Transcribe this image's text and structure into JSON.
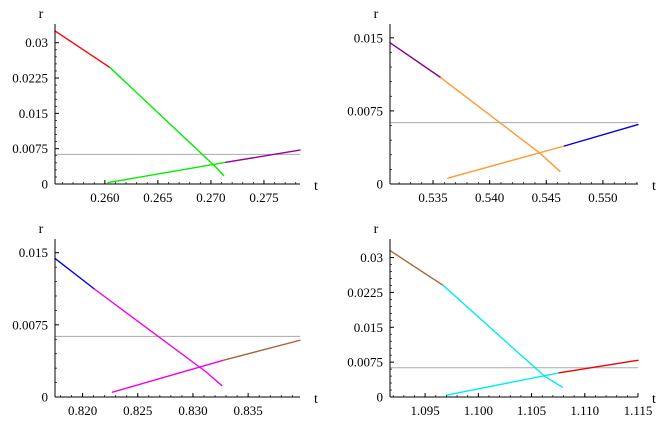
{
  "chart_data": [
    {
      "type": "line",
      "xlabel": "t",
      "ylabel": "r",
      "xlim": [
        0.2553,
        0.2784
      ],
      "ylim": [
        0,
        0.0327
      ],
      "x_ticks": [
        0.26,
        0.265,
        0.27,
        0.275
      ],
      "x_tick_labels": [
        "0.260",
        "0.265",
        "0.270",
        "0.275"
      ],
      "y_ticks": [
        0,
        0.0075,
        0.015,
        0.0225,
        0.03
      ],
      "y_tick_labels": [
        "0",
        "0.0075",
        "0.015",
        "0.0225",
        "0.03"
      ],
      "reference_line": {
        "y": 0.0063,
        "color": "#aaaaaa"
      },
      "series": [
        {
          "color": "#ff0000",
          "points": [
            [
              0.2553,
              0.0325
            ],
            [
              0.2605,
              0.0247
            ]
          ]
        },
        {
          "color": "#00ee00",
          "points": [
            [
              0.2605,
              0.0247
            ],
            [
              0.2705,
              0.0035
            ],
            [
              0.2712,
              0.0018
            ]
          ]
        },
        {
          "color": "#00ee00",
          "points": [
            [
              0.2603,
              0.0003
            ],
            [
              0.2714,
              0.0046
            ]
          ]
        },
        {
          "color": "#990099",
          "points": [
            [
              0.2714,
              0.0046
            ],
            [
              0.2784,
              0.0072
            ]
          ]
        }
      ]
    },
    {
      "type": "line",
      "xlabel": "t",
      "ylabel": "r",
      "xlim": [
        0.5312,
        0.5531
      ],
      "ylim": [
        0,
        0.0158
      ],
      "x_ticks": [
        0.535,
        0.54,
        0.545,
        0.55
      ],
      "x_tick_labels": [
        "0.535",
        "0.540",
        "0.545",
        "0.550"
      ],
      "y_ticks": [
        0,
        0.0075,
        0.015
      ],
      "y_tick_labels": [
        "0",
        "0.0075",
        "0.015"
      ],
      "reference_line": {
        "y": 0.0063,
        "color": "#aaaaaa"
      },
      "series": [
        {
          "color": "#880088",
          "points": [
            [
              0.5312,
              0.0145
            ],
            [
              0.5357,
              0.0109
            ]
          ]
        },
        {
          "color": "#ff9933",
          "points": [
            [
              0.5357,
              0.0109
            ],
            [
              0.5444,
              0.0032
            ],
            [
              0.5462,
              0.0013
            ]
          ]
        },
        {
          "color": "#ff9933",
          "points": [
            [
              0.5363,
              0.0006
            ],
            [
              0.5466,
              0.0039
            ]
          ]
        },
        {
          "color": "#0000dd",
          "points": [
            [
              0.5466,
              0.0039
            ],
            [
              0.5531,
              0.0061
            ]
          ]
        }
      ]
    },
    {
      "type": "line",
      "xlabel": "t",
      "ylabel": "r",
      "xlim": [
        0.8175,
        0.8397
      ],
      "ylim": [
        0,
        0.0158
      ],
      "x_ticks": [
        0.82,
        0.825,
        0.83,
        0.835
      ],
      "x_tick_labels": [
        "0.820",
        "0.825",
        "0.830",
        "0.835"
      ],
      "y_ticks": [
        0,
        0.0075,
        0.015
      ],
      "y_tick_labels": [
        "0",
        "0.0075",
        "0.015"
      ],
      "reference_line": {
        "y": 0.0063,
        "color": "#aaaaaa"
      },
      "series": [
        {
          "color": "#0000ee",
          "points": [
            [
              0.8175,
              0.0144
            ],
            [
              0.8211,
              0.0112
            ]
          ]
        },
        {
          "color": "#ee00ee",
          "points": [
            [
              0.8211,
              0.0112
            ],
            [
              0.8312,
              0.0026
            ],
            [
              0.8326,
              0.0012
            ]
          ]
        },
        {
          "color": "#ee00ee",
          "points": [
            [
              0.8227,
              0.0005
            ],
            [
              0.8327,
              0.0038
            ]
          ]
        },
        {
          "color": "#aa6633",
          "points": [
            [
              0.8327,
              0.0038
            ],
            [
              0.8397,
              0.0059
            ]
          ]
        }
      ]
    },
    {
      "type": "line",
      "xlabel": "t",
      "ylabel": "r",
      "xlim": [
        1.0917,
        1.115
      ],
      "ylim": [
        0,
        0.0327
      ],
      "x_ticks": [
        1.095,
        1.1,
        1.105,
        1.11,
        1.115
      ],
      "x_tick_labels": [
        "1.095",
        "1.100",
        "1.105",
        "1.110",
        "1.115"
      ],
      "y_ticks": [
        0,
        0.0075,
        0.015,
        0.0225,
        0.03
      ],
      "y_tick_labels": [
        "0",
        "0.0075",
        "0.015",
        "0.0225",
        "0.03"
      ],
      "reference_line": {
        "y": 0.0063,
        "color": "#aaaaaa"
      },
      "series": [
        {
          "color": "#aa6633",
          "points": [
            [
              1.0917,
              0.0315
            ],
            [
              1.0967,
              0.024
            ]
          ]
        },
        {
          "color": "#00eeee",
          "points": [
            [
              1.0967,
              0.024
            ],
            [
              1.1062,
              0.0045
            ],
            [
              1.1079,
              0.0021
            ]
          ]
        },
        {
          "color": "#00eeee",
          "points": [
            [
              1.097,
              0.0004
            ],
            [
              1.1076,
              0.0052
            ]
          ]
        },
        {
          "color": "#ee0000",
          "points": [
            [
              1.1076,
              0.0052
            ],
            [
              1.115,
              0.0079
            ]
          ]
        }
      ]
    }
  ]
}
